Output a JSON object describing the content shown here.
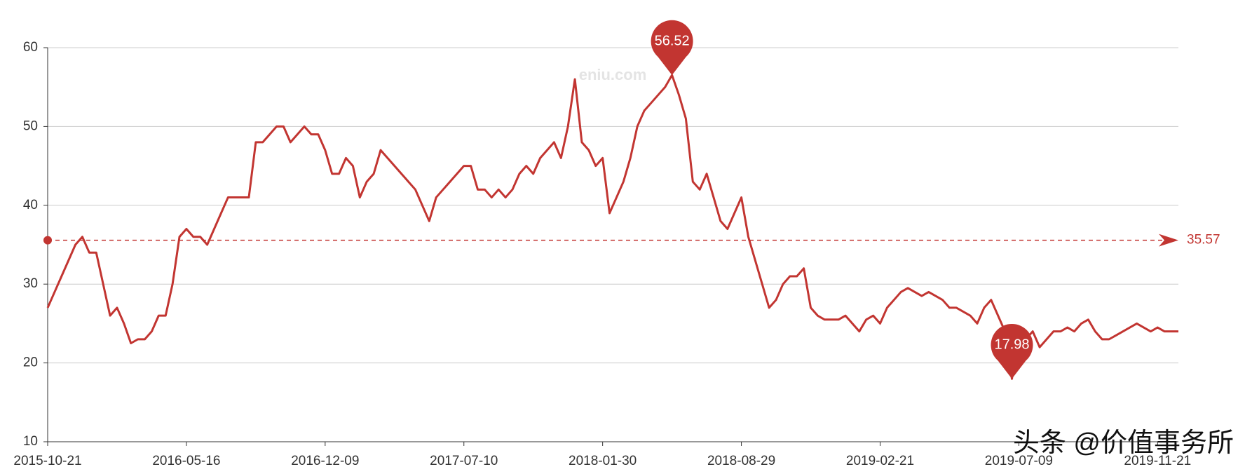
{
  "chart_data": {
    "type": "line",
    "watermark": "eniu.com",
    "credit": "头条 @价值事务所",
    "color": "#c23531",
    "categories": [
      "2015-10-21",
      null,
      null,
      null,
      null,
      null,
      null,
      null,
      null,
      null,
      null,
      null,
      null,
      null,
      null,
      null,
      null,
      null,
      null,
      null,
      "2016-05-16",
      null,
      null,
      null,
      null,
      null,
      null,
      null,
      null,
      null,
      null,
      null,
      null,
      null,
      null,
      null,
      null,
      null,
      null,
      null,
      "2016-12-09",
      null,
      null,
      null,
      null,
      null,
      null,
      null,
      null,
      null,
      null,
      null,
      null,
      null,
      null,
      null,
      null,
      null,
      null,
      null,
      "2017-07-10",
      null,
      null,
      null,
      null,
      null,
      null,
      null,
      null,
      null,
      null,
      null,
      null,
      null,
      null,
      null,
      null,
      null,
      null,
      null,
      "2018-01-30",
      null,
      null,
      null,
      null,
      null,
      null,
      null,
      null,
      null,
      null,
      null,
      null,
      null,
      null,
      null,
      null,
      null,
      null,
      null,
      "2018-08-29",
      null,
      null,
      null,
      null,
      null,
      null,
      null,
      null,
      null,
      null,
      null,
      null,
      null,
      null,
      null,
      null,
      null,
      null,
      null,
      "2019-02-21",
      null,
      null,
      null,
      null,
      null,
      null,
      null,
      null,
      null,
      null,
      null,
      null,
      null,
      null,
      null,
      null,
      null,
      null,
      null,
      "2019-07-09",
      null,
      null,
      null,
      null,
      null,
      null,
      null,
      null,
      null,
      null,
      null,
      null,
      null,
      null,
      null,
      null,
      null,
      null,
      null,
      "2019-11-21",
      null,
      null,
      null
    ],
    "values": [
      27,
      29,
      31,
      33,
      35,
      36,
      34,
      34,
      30,
      26,
      27,
      25,
      22.5,
      23,
      23,
      24,
      26,
      26,
      30,
      36,
      37,
      36,
      36,
      35,
      37,
      39,
      41,
      41,
      41,
      41,
      48,
      48,
      49,
      50,
      50,
      48,
      49,
      50,
      49,
      49,
      47,
      44,
      44,
      46,
      45,
      41,
      43,
      44,
      47,
      46,
      45,
      44,
      43,
      42,
      40,
      38,
      41,
      42,
      43,
      44,
      45,
      45,
      42,
      42,
      41,
      42,
      41,
      42,
      44,
      45,
      44,
      46,
      47,
      48,
      46,
      50,
      56,
      48,
      47,
      45,
      46,
      39,
      41,
      43,
      46,
      50,
      52,
      53,
      54,
      55,
      56.52,
      54,
      51,
      43,
      42,
      44,
      41,
      38,
      37,
      39,
      41,
      36,
      33,
      30,
      27,
      28,
      30,
      31,
      31,
      32,
      27,
      26,
      25.5,
      25.5,
      25.5,
      26,
      25,
      24,
      25.5,
      26,
      25,
      27,
      28,
      29,
      29.5,
      29,
      28.5,
      29,
      28.5,
      28,
      27,
      27,
      26.5,
      26,
      25,
      27,
      28,
      26,
      24,
      17.98,
      24,
      23,
      24,
      22,
      23,
      24,
      24,
      24.5,
      24,
      25,
      25.5,
      24,
      23,
      23,
      23.5,
      24,
      24.5,
      25,
      24.5,
      24,
      24.5,
      24,
      24,
      24
    ],
    "average": 35.57,
    "ylim": [
      10,
      60
    ],
    "yticks": [
      10,
      20,
      30,
      40,
      50,
      60
    ],
    "grid": true
  }
}
